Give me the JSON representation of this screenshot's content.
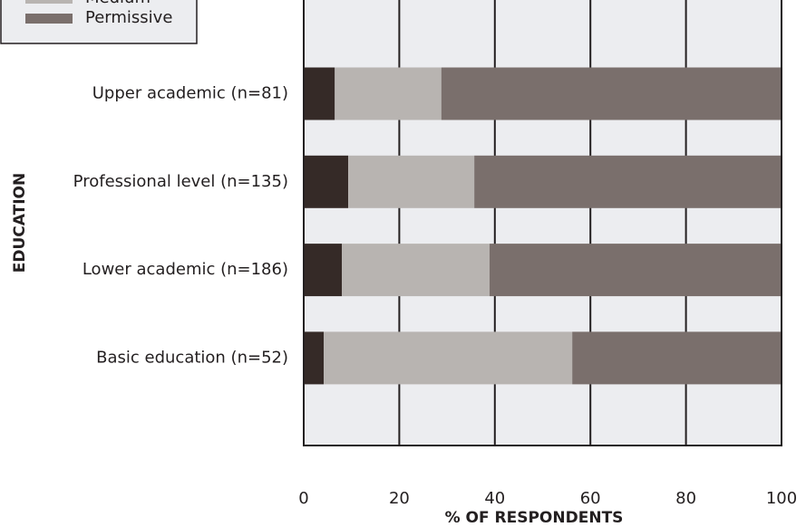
{
  "chart_data": {
    "type": "stacked-bar-horizontal",
    "categories": [
      "Upper academic (n=81)",
      "Professional level (n=135)",
      "Lower academic (n=186)",
      "Basic education (n=52)"
    ],
    "series": [
      {
        "color": "#352a27",
        "values": [
          6.5,
          9.3,
          8.0,
          4.2
        ]
      },
      {
        "name": "Medium",
        "color": "#b8b4b1",
        "values": [
          22.3,
          26.4,
          30.9,
          52.0
        ]
      },
      {
        "name": "Permissive",
        "color": "#7a6f6c",
        "values": [
          71.2,
          64.3,
          61.1,
          43.8
        ]
      }
    ],
    "xlim": [
      0,
      100
    ],
    "xticks": [
      0,
      20,
      40,
      60,
      80,
      100
    ],
    "grid": true,
    "xlabel": "% OF RESPONDENTS",
    "ylabel": "EDUCATION",
    "legend": "top-left"
  }
}
